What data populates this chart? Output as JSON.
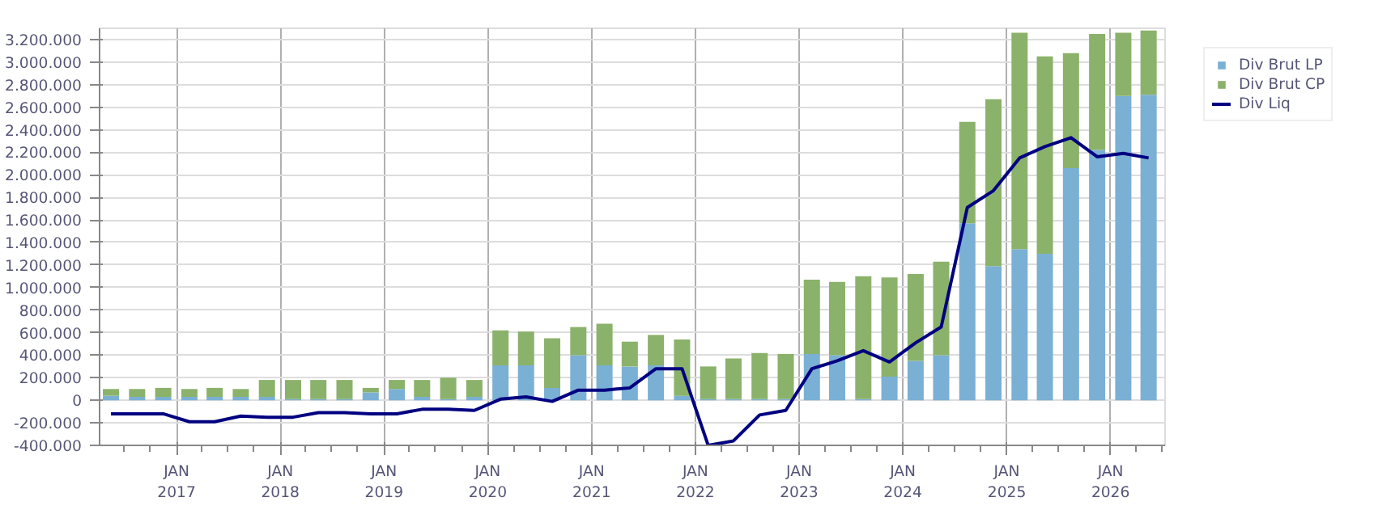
{
  "chart_data": {
    "type": "bar",
    "stacked": true,
    "x": [
      "2016-05-15",
      "2016-08-15",
      "2016-11-15",
      "2017-02-15",
      "2017-05-15",
      "2017-08-15",
      "2017-11-15",
      "2018-02-15",
      "2018-05-15",
      "2018-08-15",
      "2018-11-15",
      "2019-02-15",
      "2019-05-15",
      "2019-08-15",
      "2019-11-15",
      "2020-02-15",
      "2020-05-15",
      "2020-08-15",
      "2020-11-15",
      "2021-02-15",
      "2021-05-15",
      "2021-08-15",
      "2021-11-15",
      "2022-02-15",
      "2022-05-15",
      "2022-08-15",
      "2022-11-15",
      "2023-02-15",
      "2023-05-15",
      "2023-08-15",
      "2023-11-15",
      "2024-02-15",
      "2024-05-15",
      "2024-08-15",
      "2024-11-15",
      "2025-02-15",
      "2025-05-15",
      "2025-08-15",
      "2025-11-15",
      "2026-02-15",
      "2026-05-15"
    ],
    "series": [
      {
        "name": "Div Brut LP",
        "color": "#7ab0d4",
        "values": [
          40000,
          30000,
          30000,
          30000,
          30000,
          30000,
          30000,
          10000,
          10000,
          10000,
          70000,
          100000,
          30000,
          10000,
          30000,
          310000,
          310000,
          110000,
          400000,
          310000,
          300000,
          310000,
          40000,
          10000,
          10000,
          10000,
          10000,
          410000,
          400000,
          10000,
          210000,
          350000,
          400000,
          1570000,
          1190000,
          1340000,
          1300000,
          2060000,
          2220000,
          2700000,
          2710000
        ]
      },
      {
        "name": "Div Brut CP",
        "color": "#8bb26b",
        "values": [
          60000,
          70000,
          80000,
          70000,
          80000,
          70000,
          150000,
          170000,
          170000,
          170000,
          40000,
          80000,
          150000,
          190000,
          150000,
          310000,
          300000,
          440000,
          250000,
          370000,
          220000,
          270000,
          500000,
          290000,
          360000,
          410000,
          400000,
          660000,
          650000,
          1090000,
          880000,
          770000,
          830000,
          900000,
          1480000,
          1920000,
          1750000,
          1020000,
          1030000,
          560000,
          570000
        ]
      },
      {
        "name": "Div Liq",
        "type": "line",
        "color": "#000080",
        "values": [
          -120000,
          -120000,
          -120000,
          -190000,
          -190000,
          -140000,
          -150000,
          -150000,
          -110000,
          -110000,
          -120000,
          -120000,
          -80000,
          -80000,
          -90000,
          10000,
          30000,
          -10000,
          90000,
          90000,
          110000,
          280000,
          280000,
          -400000,
          -360000,
          -130000,
          -90000,
          280000,
          350000,
          440000,
          340000,
          510000,
          650000,
          1710000,
          1860000,
          2150000,
          2250000,
          2330000,
          2160000,
          2190000,
          2150000
        ]
      }
    ],
    "xlim": [
      "2016-04-05",
      "2026-07-12"
    ],
    "xticks": [
      {
        "value": "2017-01-01",
        "label": "JAN\n2017"
      },
      {
        "value": "2018-01-01",
        "label": "JAN\n2018"
      },
      {
        "value": "2019-01-01",
        "label": "JAN\n2019"
      },
      {
        "value": "2020-01-01",
        "label": "JAN\n2020"
      },
      {
        "value": "2021-01-01",
        "label": "JAN\n2021"
      },
      {
        "value": "2022-01-01",
        "label": "JAN\n2022"
      },
      {
        "value": "2023-01-01",
        "label": "JAN\n2023"
      },
      {
        "value": "2024-01-01",
        "label": "JAN\n2024"
      },
      {
        "value": "2025-01-01",
        "label": "JAN\n2025"
      },
      {
        "value": "2026-01-01",
        "label": "JAN\n2026"
      }
    ],
    "ylim": [
      -400000,
      3300000
    ],
    "yticks": [
      {
        "value": -400000,
        "label": "-400.000"
      },
      {
        "value": -200000,
        "label": "-200.000"
      },
      {
        "value": 0,
        "label": "0"
      },
      {
        "value": 200000,
        "label": "200.000"
      },
      {
        "value": 400000,
        "label": "400.000"
      },
      {
        "value": 600000,
        "label": "600.000"
      },
      {
        "value": 800000,
        "label": "800.000"
      },
      {
        "value": 1000000,
        "label": "1.000.000"
      },
      {
        "value": 1200000,
        "label": "1.200.000"
      },
      {
        "value": 1400000,
        "label": "1.400.000"
      },
      {
        "value": 1600000,
        "label": "1.600.000"
      },
      {
        "value": 1800000,
        "label": "1.800.000"
      },
      {
        "value": 2000000,
        "label": "2.000.000"
      },
      {
        "value": 2200000,
        "label": "2.200.000"
      },
      {
        "value": 2400000,
        "label": "2.400.000"
      },
      {
        "value": 2600000,
        "label": "2.600.000"
      },
      {
        "value": 2800000,
        "label": "2.800.000"
      },
      {
        "value": 3000000,
        "label": "3.000.000"
      },
      {
        "value": 3200000,
        "label": "3.200.000"
      }
    ],
    "grid": true,
    "legend": "top right"
  }
}
